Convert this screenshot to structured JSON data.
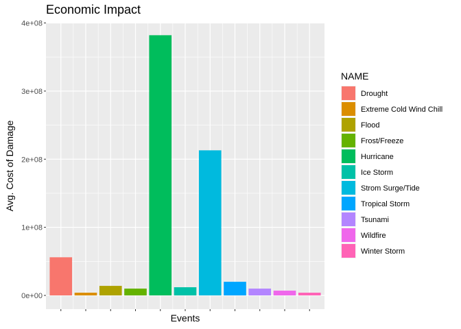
{
  "chart_data": {
    "type": "bar",
    "title": "Economic Impact",
    "xlabel": "Events",
    "ylabel": "Avg. Cost of Damage",
    "ylim": [
      0,
      400000000
    ],
    "yticks": [
      0,
      100000000,
      200000000,
      300000000,
      400000000
    ],
    "ytick_labels": [
      "0e+00",
      "1e+08",
      "2e+08",
      "3e+08",
      "4e+08"
    ],
    "grid": true,
    "legend_title": "NAME",
    "legend_position": "right",
    "categories": [
      "Drought",
      "Extreme Cold Wind Chill",
      "Flood",
      "Frost/Freeze",
      "Hurricane",
      "Ice Storm",
      "Strom Surge/Tide",
      "Tropical Storm",
      "Tsunami",
      "Wildfire",
      "Winter Storm"
    ],
    "values": [
      56000000,
      4000000,
      14000000,
      10000000,
      382000000,
      12000000,
      213000000,
      20000000,
      10000000,
      7000000,
      4000000
    ],
    "colors": [
      "#F8766D",
      "#DB8E00",
      "#AEA200",
      "#64B200",
      "#00BD5C",
      "#00C1A7",
      "#00BADE",
      "#00A6FF",
      "#B385FF",
      "#EF67EB",
      "#FF63B6"
    ]
  }
}
